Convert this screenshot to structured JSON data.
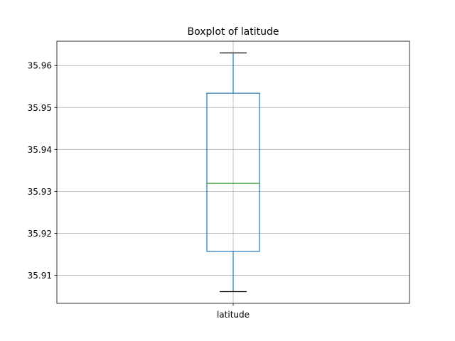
{
  "chart_data": {
    "type": "boxplot",
    "title": "Boxplot of latitude",
    "xlabel": "",
    "ylabel": "",
    "categories": [
      "latitude"
    ],
    "ylim": [
      35.9033,
      35.9658
    ],
    "yticks": [
      35.91,
      35.92,
      35.93,
      35.94,
      35.95,
      35.96
    ],
    "ytick_labels": [
      "35.91",
      "35.92",
      "35.93",
      "35.94",
      "35.95",
      "35.96"
    ],
    "boxes": [
      {
        "category": "latitude",
        "whisker_low": 35.9061,
        "q1": 35.9157,
        "median": 35.9319,
        "q3": 35.9534,
        "whisker_high": 35.963
      }
    ],
    "grid": true,
    "colors": {
      "box": "#1f77b4",
      "median": "#2ca02c",
      "cap": "#000000",
      "grid": "#b0b0b0",
      "frame": "#000000"
    }
  }
}
